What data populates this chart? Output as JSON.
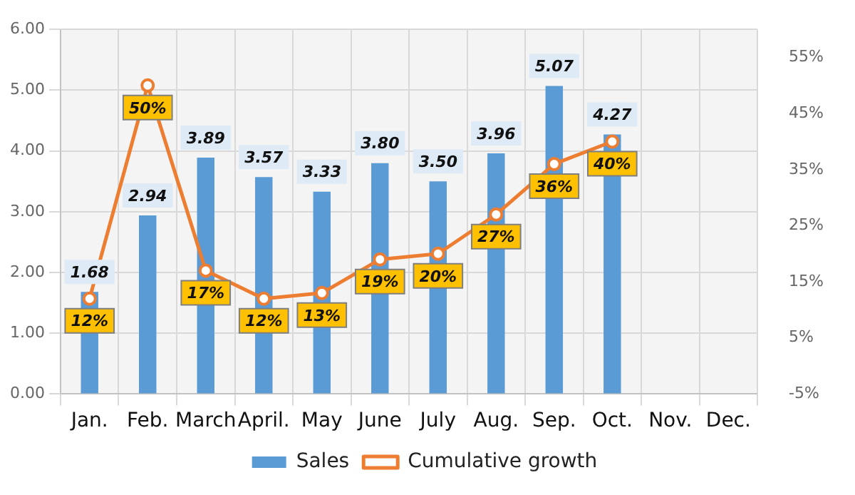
{
  "chart_data": {
    "type": "bar",
    "categories": [
      "Jan.",
      "Feb.",
      "March",
      "April.",
      "May",
      "June",
      "July",
      "Aug.",
      "Sep.",
      "Oct.",
      "Nov.",
      "Dec."
    ],
    "series": [
      {
        "name": "Sales",
        "color": "#5b9bd5",
        "values": [
          1.68,
          2.94,
          3.89,
          3.57,
          3.33,
          3.8,
          3.5,
          3.96,
          5.07,
          4.27,
          null,
          null
        ],
        "value_labels": [
          "1.68",
          "2.94",
          "3.89",
          "3.57",
          "3.33",
          "3.80",
          "3.50",
          "3.96",
          "5.07",
          "4.27",
          null,
          null
        ]
      },
      {
        "name": "Cumulative growth",
        "type": "line",
        "axis": "y2",
        "color": "#ed7d31",
        "values": [
          12,
          50,
          17,
          12,
          13,
          19,
          20,
          27,
          36,
          40,
          null,
          null
        ],
        "value_labels": [
          "12%",
          "50%",
          "17%",
          "12%",
          "13%",
          "19%",
          "20%",
          "27%",
          "36%",
          "40%",
          null,
          null
        ]
      }
    ],
    "ylim": [
      0,
      6
    ],
    "yticks": [
      {
        "value": 0,
        "label": "0.00"
      },
      {
        "value": 1,
        "label": "1.00"
      },
      {
        "value": 2,
        "label": "2.00"
      },
      {
        "value": 3,
        "label": "3.00"
      },
      {
        "value": 4,
        "label": "4.00"
      },
      {
        "value": 5,
        "label": "5.00"
      },
      {
        "value": 6,
        "label": "6.00"
      }
    ],
    "y2lim": [
      -5,
      60
    ],
    "y2ticks": [
      {
        "value": -5,
        "label": "-5%"
      },
      {
        "value": 5,
        "label": "5%"
      },
      {
        "value": 15,
        "label": "15%"
      },
      {
        "value": 25,
        "label": "25%"
      },
      {
        "value": 35,
        "label": "35%"
      },
      {
        "value": 45,
        "label": "45%"
      },
      {
        "value": 55,
        "label": "55%"
      }
    ],
    "grid": true,
    "legend": "bottom",
    "marker": "circle"
  }
}
